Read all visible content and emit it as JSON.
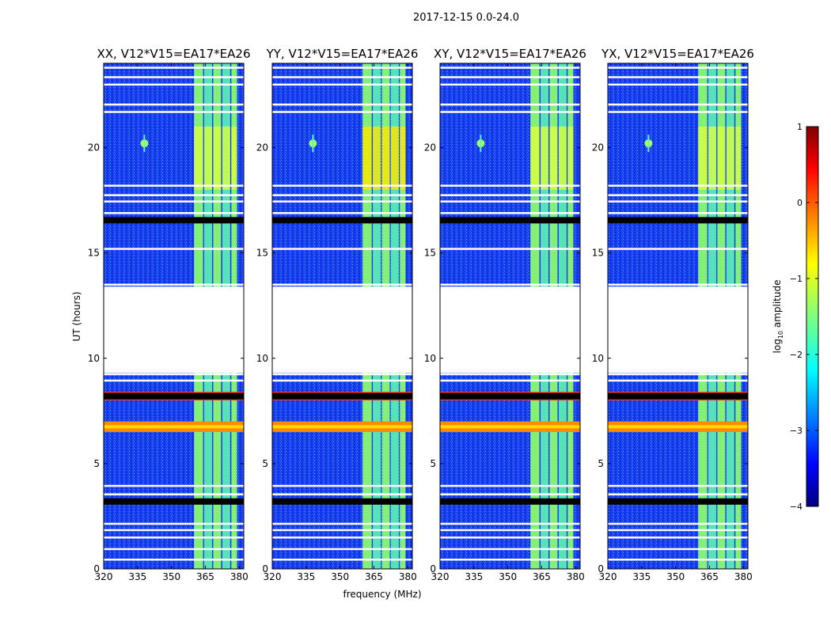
{
  "chart_data": {
    "type": "heatmap",
    "suptitle": "2017-12-15 0.0-24.0",
    "xlabel": "frequency (MHz)",
    "ylabel": "UT (hours)",
    "xlim": [
      320,
      382
    ],
    "ylim": [
      0,
      24
    ],
    "xticks": [
      320,
      335,
      350,
      365,
      380
    ],
    "yticks": [
      0,
      5,
      10,
      15,
      20
    ],
    "colorbar": {
      "label": "log",
      "label_sub": "10",
      "label_rest": " amplitude",
      "range": [
        -4,
        1
      ],
      "ticks": [
        "1",
        "0",
        "−1",
        "−2",
        "−3",
        "−4"
      ],
      "colormap": "jet"
    },
    "panels": [
      {
        "title": "XX, V12*V15=EA17*EA26",
        "pol": "XX"
      },
      {
        "title": "YY, V12*V15=EA17*EA26",
        "pol": "YY"
      },
      {
        "title": "XY, V12*V15=EA17*EA26",
        "pol": "XY"
      },
      {
        "title": "YX, V12*V15=EA17*EA26",
        "pol": "YX"
      }
    ],
    "data_gap_hours": [
      9.3,
      13.4
    ],
    "flagged_rows_hours": [
      0.45,
      0.95,
      1.5,
      1.85,
      2.15,
      3.55,
      3.95,
      8.95,
      9.25,
      13.5,
      15.2,
      16.9,
      17.45,
      17.75,
      18.2,
      21.7,
      22.05,
      23.0,
      23.35,
      23.8
    ],
    "dark_rows_hours": [
      3.2,
      8.2,
      16.55
    ],
    "rfi_block_mhz": [
      360,
      379
    ],
    "rfi_sub_bands_mhz": [
      [
        360,
        364
      ],
      [
        364.5,
        368
      ],
      [
        368.5,
        372
      ],
      [
        372.5,
        376
      ],
      [
        376.5,
        379
      ]
    ],
    "interference_hours": [
      [
        6.5,
        7.0
      ],
      [
        8.0,
        8.4
      ]
    ],
    "source_hours": 20.2,
    "source_mhz": 338
  }
}
